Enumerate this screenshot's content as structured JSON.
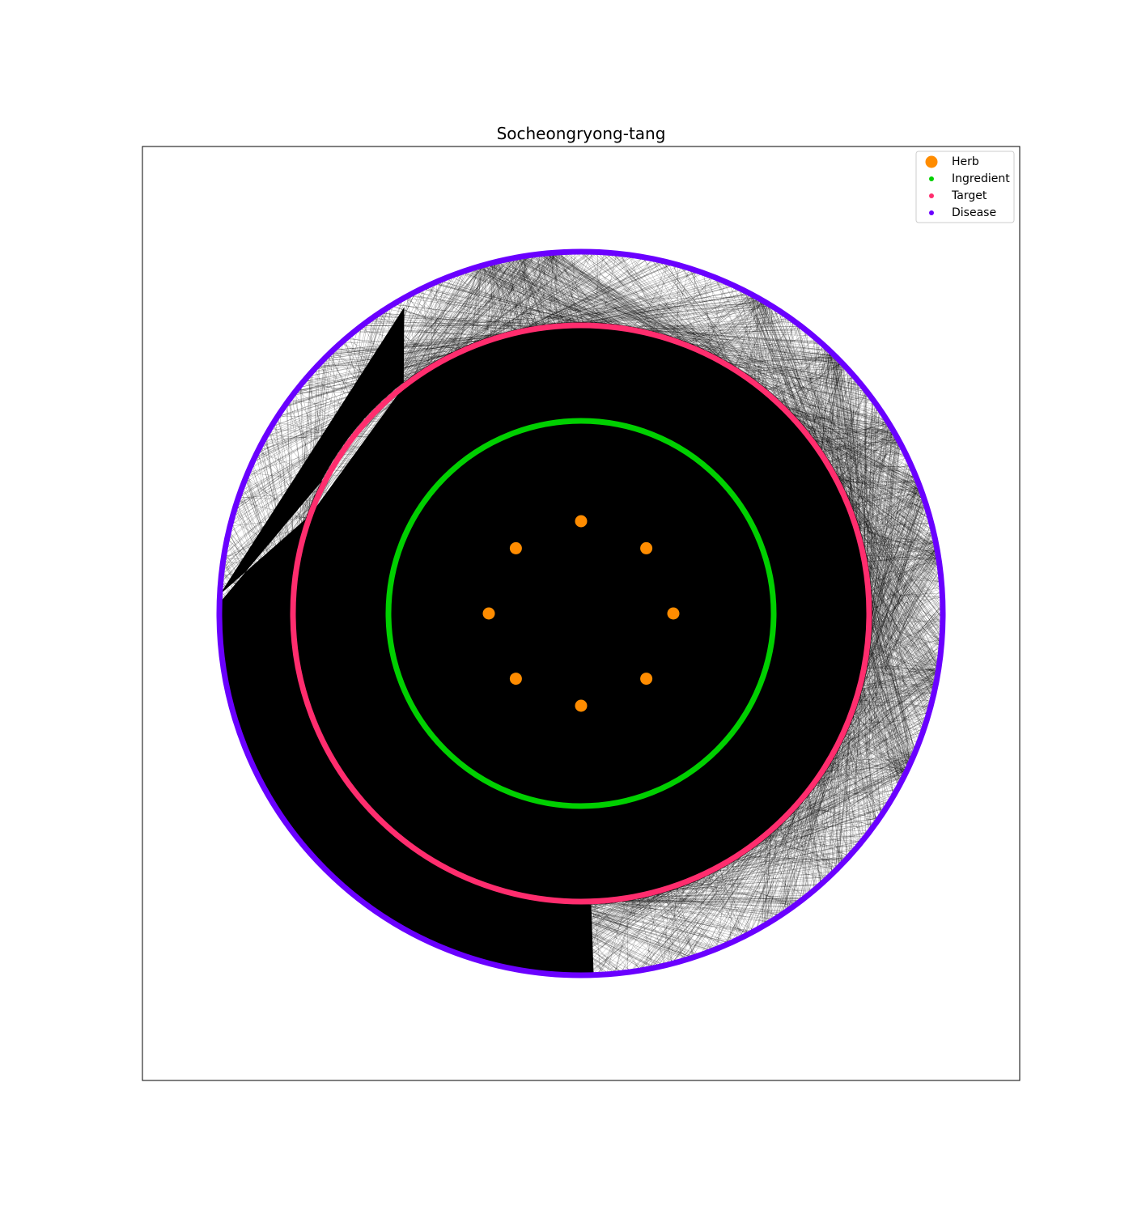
{
  "title": "Socheongryong-tang",
  "legend": {
    "placement": "upper-right",
    "items": [
      {
        "label": "Herb",
        "color": "#ff8c00"
      },
      {
        "label": "Ingredient",
        "color": "#00d000"
      },
      {
        "label": "Target",
        "color": "#ff2d6e"
      },
      {
        "label": "Disease",
        "color": "#6a00ff"
      }
    ]
  },
  "network": {
    "layout": "concentric shells",
    "herb_count": 8,
    "shells": [
      {
        "name": "Herb",
        "color": "#ff8c00"
      },
      {
        "name": "Ingredient",
        "color": "#00d000"
      },
      {
        "name": "Target",
        "color": "#ff2d6e"
      },
      {
        "name": "Disease",
        "color": "#6a00ff"
      }
    ],
    "edge_color": "#000000"
  }
}
